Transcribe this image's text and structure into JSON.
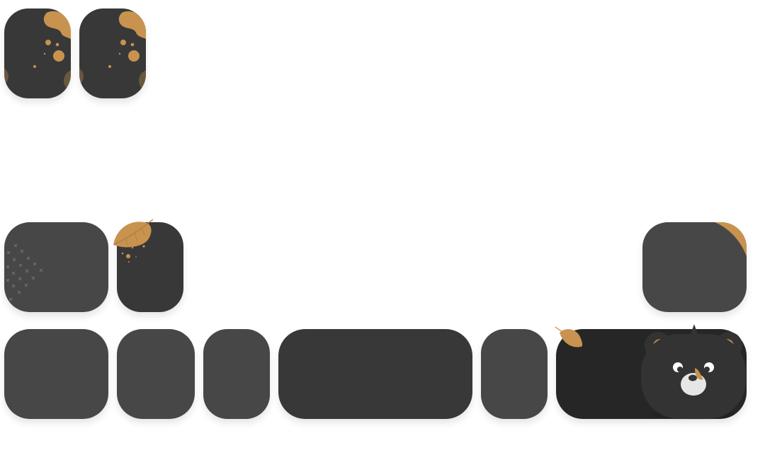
{
  "keyboard": {
    "theme": {
      "key_color": "#474747",
      "key_dark_color": "#383838",
      "key_darker_color": "#262626",
      "accent_color": "#C8924F",
      "bear_face_color": "#333333",
      "snout_color": "#E6E6E6"
    },
    "icons": {
      "leaf": "leaf-icon",
      "bear": "bear-mascot-icon",
      "cross_pattern": "cross-pattern-decoration",
      "splatter": "splatter-decoration"
    },
    "rows": [
      {
        "name": "top-row",
        "keys": 2,
        "labels": []
      },
      {
        "name": "middle-row",
        "keys": 3,
        "labels": []
      },
      {
        "name": "bottom-row",
        "keys": 6,
        "labels": []
      }
    ]
  }
}
